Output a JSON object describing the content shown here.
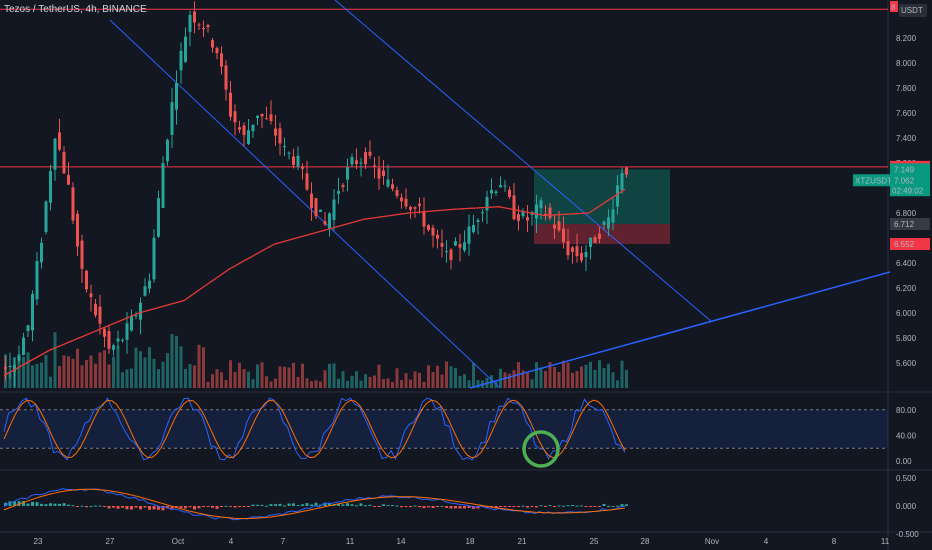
{
  "header": {
    "symbol_line": "Tezos / TetherUS, 4h, BINANCE"
  },
  "price_scale": {
    "currency_badge": "USDT",
    "top_badge": "8",
    "ticks": [
      "8.200",
      "8.000",
      "7.800",
      "7.600",
      "7.400",
      "7.200",
      "6.800",
      "6.400",
      "6.200",
      "6.000",
      "5.800",
      "5.600"
    ],
    "tick_values": [
      8.2,
      8.0,
      7.8,
      7.6,
      7.4,
      7.2,
      6.8,
      6.4,
      6.2,
      6.0,
      5.8,
      5.6
    ],
    "badges": [
      {
        "id": "resistance",
        "text": "7.169",
        "value": 7.169,
        "color": "#f23645"
      },
      {
        "id": "target",
        "text": "7.149",
        "value": 7.149,
        "color": "#089981"
      },
      {
        "id": "ma",
        "text": "6.712",
        "value": 6.712,
        "color": "#363a45"
      },
      {
        "id": "stop",
        "text": "6.552",
        "value": 6.552,
        "color": "#f23645"
      }
    ],
    "last_price": {
      "symbol": "XTZUSDT",
      "price": "7.062",
      "countdown": "02:49:02",
      "color": "#089981"
    },
    "hidden_tick": "6.600"
  },
  "stoch_scale": {
    "ticks": [
      "80.00",
      "40.00",
      "0.00"
    ],
    "values": [
      80,
      40,
      0
    ]
  },
  "macd_scale": {
    "ticks": [
      "0.500",
      "0.000",
      "-0.500"
    ],
    "values": [
      0.5,
      0,
      -0.5
    ]
  },
  "time_axis": {
    "labels": [
      "23",
      "27",
      "Oct",
      "4",
      "7",
      "11",
      "14",
      "18",
      "21",
      "25",
      "28",
      "Nov",
      "4",
      "8",
      "11"
    ]
  },
  "chart_data": {
    "type": "candlestick",
    "symbol": "Tezos / TetherUS",
    "interval": "4h",
    "exchange": "BINANCE",
    "y_range_price": [
      5.5,
      8.4
    ],
    "horizontal_lines": [
      8.43,
      7.169
    ],
    "position": {
      "entry": 6.712,
      "target": 7.149,
      "stop": 6.552
    },
    "price_path": [
      [
        0,
        5.55
      ],
      [
        3,
        5.6
      ],
      [
        6,
        5.9
      ],
      [
        9,
        6.6
      ],
      [
        12,
        7.45
      ],
      [
        15,
        7.0
      ],
      [
        18,
        6.3
      ],
      [
        21,
        6.0
      ],
      [
        24,
        5.7
      ],
      [
        27,
        5.8
      ],
      [
        30,
        6.0
      ],
      [
        33,
        6.3
      ],
      [
        36,
        7.2
      ],
      [
        39,
        7.9
      ],
      [
        42,
        8.4
      ],
      [
        45,
        8.3
      ],
      [
        48,
        8.1
      ],
      [
        51,
        7.6
      ],
      [
        54,
        7.4
      ],
      [
        57,
        7.6
      ],
      [
        60,
        7.5
      ],
      [
        63,
        7.3
      ],
      [
        66,
        7.2
      ],
      [
        69,
        6.9
      ],
      [
        72,
        6.7
      ],
      [
        75,
        7.0
      ],
      [
        78,
        7.2
      ],
      [
        81,
        7.25
      ],
      [
        84,
        7.1
      ],
      [
        87,
        7.0
      ],
      [
        90,
        6.9
      ],
      [
        93,
        6.8
      ],
      [
        96,
        6.6
      ],
      [
        99,
        6.45
      ],
      [
        102,
        6.55
      ],
      [
        105,
        6.7
      ],
      [
        108,
        6.95
      ],
      [
        111,
        7.05
      ],
      [
        114,
        6.8
      ],
      [
        117,
        6.75
      ],
      [
        120,
        6.85
      ],
      [
        123,
        6.7
      ],
      [
        126,
        6.5
      ],
      [
        129,
        6.45
      ],
      [
        132,
        6.6
      ],
      [
        135,
        6.75
      ],
      [
        138,
        7.15
      ]
    ],
    "ma_path": [
      [
        0,
        5.5
      ],
      [
        10,
        5.7
      ],
      [
        20,
        5.85
      ],
      [
        30,
        6.0
      ],
      [
        40,
        6.1
      ],
      [
        50,
        6.35
      ],
      [
        60,
        6.55
      ],
      [
        70,
        6.65
      ],
      [
        80,
        6.75
      ],
      [
        90,
        6.8
      ],
      [
        100,
        6.83
      ],
      [
        110,
        6.85
      ],
      [
        120,
        6.78
      ],
      [
        130,
        6.8
      ],
      [
        138,
        6.99
      ]
    ],
    "stochastic": {
      "ticks": [
        80,
        40,
        0
      ],
      "oversold_marker": "circled"
    },
    "macd": {
      "ticks": [
        0.5,
        0,
        -0.5
      ]
    }
  }
}
